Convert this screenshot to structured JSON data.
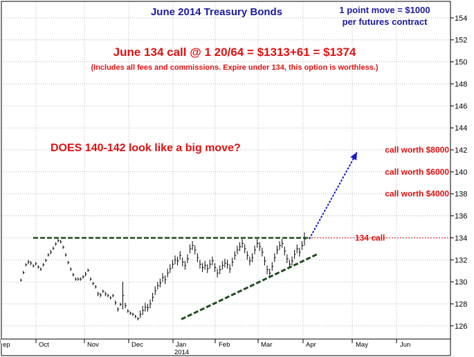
{
  "chart_data": {
    "type": "bar",
    "subtype": "ohlc",
    "title": "June 2014 Treasury Bonds",
    "note_lines": [
      "1 point move = $1000",
      "per futures contract"
    ],
    "headline": "June 134 call @ 1 20/64 = $1313+61 = $1374",
    "subheadline": "(Includes all fees and commissions. Expire under 134, this option is worthless.)",
    "question": "DOES 140-142 look like a big move?",
    "ylim": [
      124.8,
      155.5
    ],
    "y_ticks": [
      126,
      128,
      130,
      132,
      134,
      136,
      138,
      140,
      142,
      144,
      146,
      148,
      150,
      152,
      154
    ],
    "x_tick_labels": [
      "ep",
      "Oct",
      "Nov",
      "Dec",
      "Jan",
      "Feb",
      "Mar",
      "Apr",
      "May",
      "Jun"
    ],
    "year_label": "2014",
    "grid": true,
    "resistance": {
      "level": 134,
      "label": "134 call"
    },
    "call_labels": [
      {
        "text": "call worth $8000",
        "level": 142
      },
      {
        "text": "call worth $6000",
        "level": 140
      },
      {
        "text": "call worth $4000",
        "level": 138
      }
    ],
    "bars": [
      [
        130.3,
        130.0
      ],
      [
        131.0,
        130.7
      ],
      [
        131.7,
        131.4
      ],
      [
        132.0,
        131.6
      ],
      [
        131.9,
        131.5
      ],
      [
        131.6,
        131.3
      ],
      [
        131.8,
        131.5
      ],
      [
        131.5,
        131.2
      ],
      [
        131.3,
        131.0
      ],
      [
        131.7,
        131.4
      ],
      [
        132.1,
        131.8
      ],
      [
        132.6,
        132.3
      ],
      [
        132.9,
        132.5
      ],
      [
        133.2,
        132.9
      ],
      [
        133.6,
        133.3
      ],
      [
        133.9,
        133.6
      ],
      [
        133.8,
        133.5
      ],
      [
        133.3,
        133.0
      ],
      [
        132.6,
        132.3
      ],
      [
        131.9,
        131.6
      ],
      [
        131.3,
        131.0
      ],
      [
        130.8,
        130.5
      ],
      [
        130.4,
        130.1
      ],
      [
        130.4,
        130.1
      ],
      [
        130.4,
        130.1
      ],
      [
        130.6,
        130.3
      ],
      [
        130.9,
        130.5
      ],
      [
        131.2,
        130.9
      ],
      [
        130.4,
        130.1
      ],
      [
        130.0,
        129.7
      ],
      [
        129.7,
        129.4
      ],
      [
        129.1,
        128.7
      ],
      [
        129.0,
        128.6
      ],
      [
        129.3,
        129.0
      ],
      [
        129.1,
        128.7
      ],
      [
        128.9,
        128.6
      ],
      [
        128.7,
        128.4
      ],
      [
        128.9,
        128.6
      ],
      [
        128.3,
        127.9
      ],
      [
        127.7,
        127.3
      ],
      [
        128.1,
        127.8
      ],
      [
        130.0,
        127.5
      ],
      [
        128.1,
        127.6
      ],
      [
        127.5,
        127.2
      ],
      [
        127.3,
        127.0
      ],
      [
        127.2,
        126.9
      ],
      [
        127.0,
        126.7
      ],
      [
        126.8,
        126.5
      ],
      [
        127.4,
        126.7
      ],
      [
        127.8,
        127.0
      ],
      [
        128.1,
        127.3
      ],
      [
        128.0,
        127.3
      ],
      [
        128.4,
        127.6
      ],
      [
        129.0,
        128.2
      ],
      [
        129.6,
        128.8
      ],
      [
        130.0,
        129.3
      ],
      [
        130.3,
        129.5
      ],
      [
        130.8,
        130.0
      ],
      [
        130.6,
        129.8
      ],
      [
        131.2,
        130.4
      ],
      [
        131.6,
        130.8
      ],
      [
        132.0,
        131.2
      ],
      [
        132.4,
        131.6
      ],
      [
        132.3,
        131.5
      ],
      [
        132.8,
        132.0
      ],
      [
        132.2,
        131.4
      ],
      [
        131.9,
        131.1
      ],
      [
        132.5,
        131.7
      ],
      [
        133.4,
        132.6
      ],
      [
        133.7,
        132.9
      ],
      [
        133.3,
        132.5
      ],
      [
        132.6,
        131.8
      ],
      [
        132.0,
        131.2
      ],
      [
        131.7,
        130.9
      ],
      [
        131.9,
        131.1
      ],
      [
        131.6,
        130.8
      ],
      [
        132.0,
        131.2
      ],
      [
        132.3,
        131.5
      ],
      [
        131.7,
        130.9
      ],
      [
        131.2,
        130.4
      ],
      [
        131.5,
        130.7
      ],
      [
        131.9,
        131.1
      ],
      [
        132.1,
        131.3
      ],
      [
        132.0,
        131.2
      ],
      [
        131.6,
        130.8
      ],
      [
        132.2,
        131.4
      ],
      [
        132.8,
        132.0
      ],
      [
        133.3,
        132.5
      ],
      [
        133.6,
        132.8
      ],
      [
        133.9,
        133.1
      ],
      [
        133.4,
        132.6
      ],
      [
        132.8,
        132.0
      ],
      [
        132.3,
        131.5
      ],
      [
        132.6,
        131.8
      ],
      [
        133.3,
        132.5
      ],
      [
        133.9,
        133.1
      ],
      [
        133.6,
        132.8
      ],
      [
        133.1,
        132.3
      ],
      [
        132.3,
        131.5
      ],
      [
        131.5,
        130.7
      ],
      [
        131.2,
        130.4
      ],
      [
        131.8,
        131.0
      ],
      [
        132.6,
        131.8
      ],
      [
        133.3,
        132.5
      ],
      [
        133.7,
        132.9
      ],
      [
        133.9,
        133.1
      ],
      [
        133.2,
        132.4
      ],
      [
        132.5,
        131.7
      ],
      [
        132.0,
        131.2
      ],
      [
        132.3,
        131.5
      ],
      [
        132.9,
        132.1
      ],
      [
        133.4,
        132.6
      ],
      [
        133.1,
        132.3
      ],
      [
        133.7,
        132.9
      ],
      [
        134.5,
        133.3
      ]
    ]
  }
}
